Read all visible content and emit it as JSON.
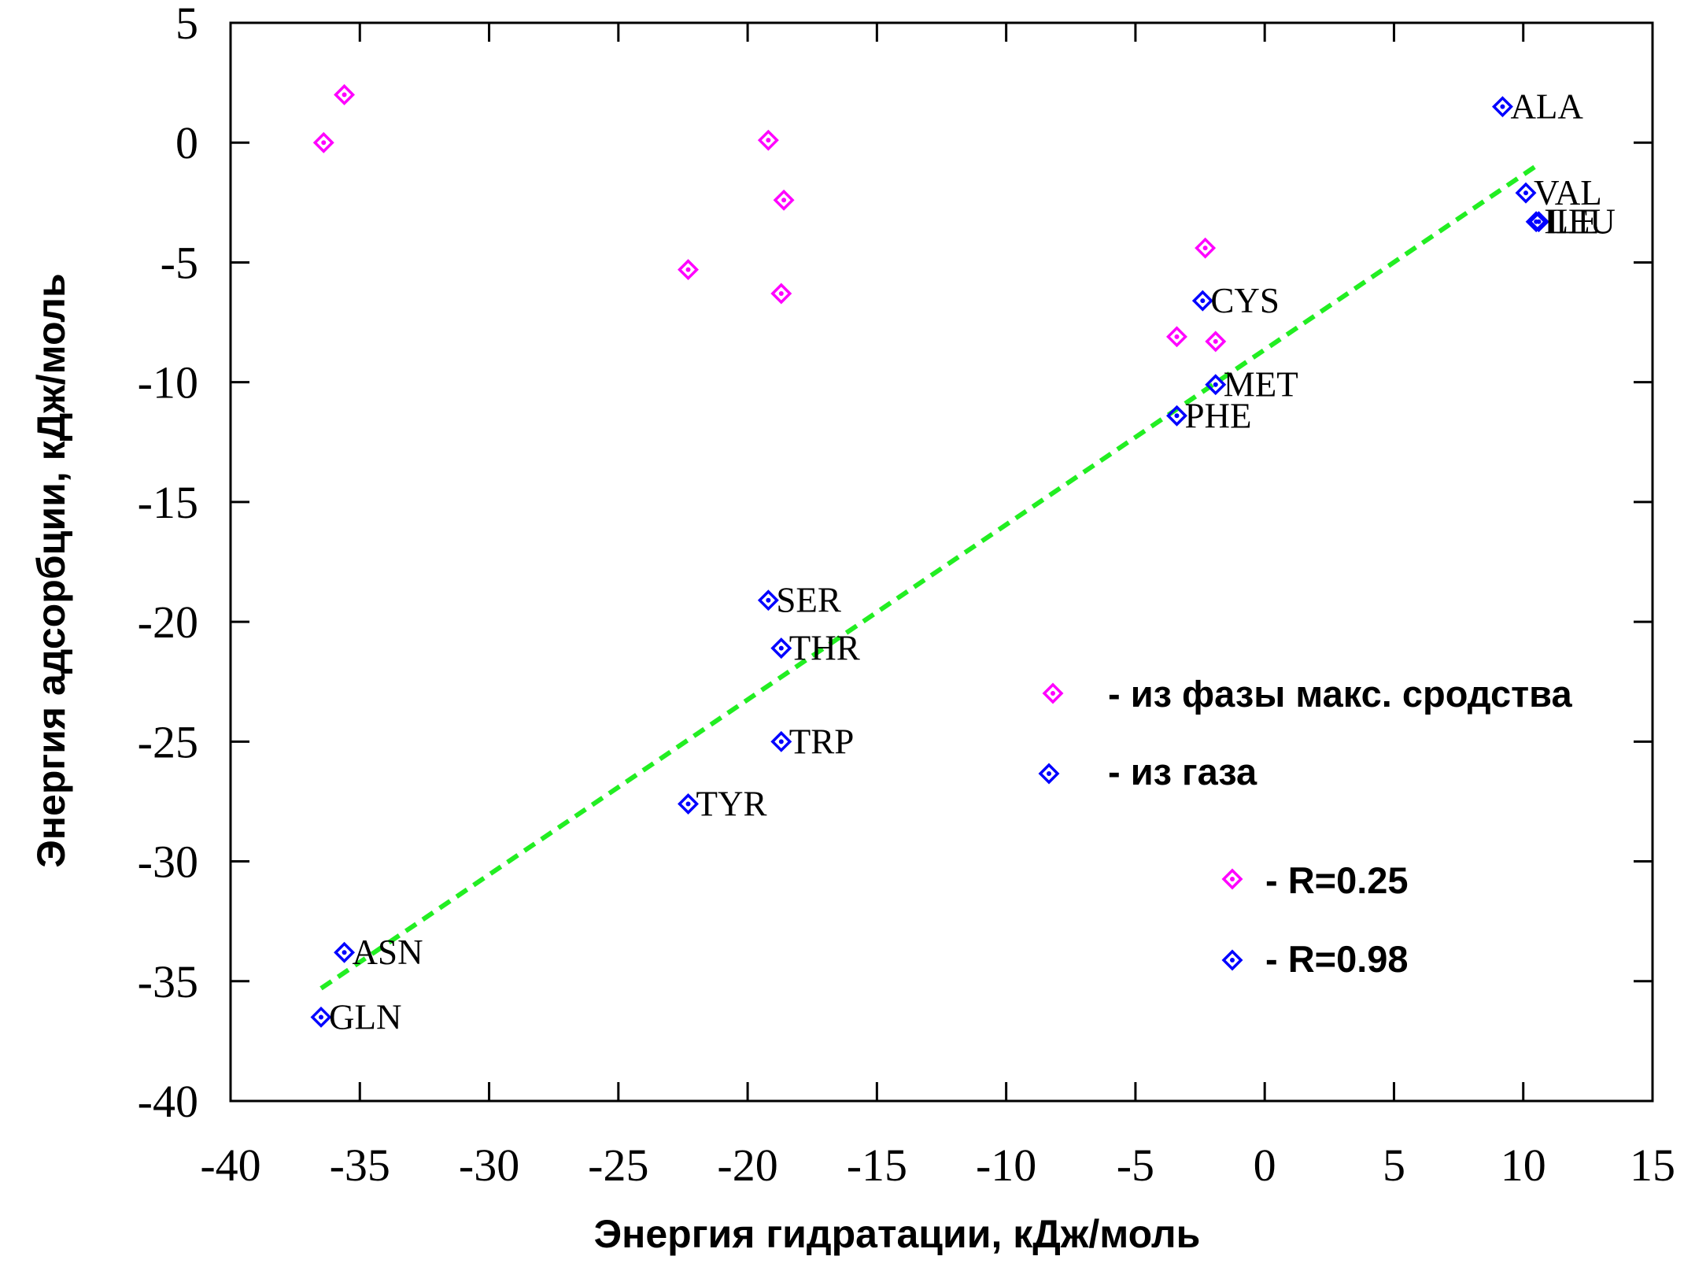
{
  "chart_data": {
    "type": "scatter",
    "xlabel": "Энергия гидратации, кДж/моль",
    "ylabel": "Энергия адсорбции, кДж/моль",
    "xlim": [
      -40,
      15
    ],
    "ylim": [
      -40,
      5
    ],
    "xticks": [
      -40,
      -35,
      -30,
      -25,
      -20,
      -15,
      -10,
      -5,
      0,
      5,
      10,
      15
    ],
    "yticks": [
      5,
      0,
      -5,
      -10,
      -15,
      -20,
      -25,
      -30,
      -35,
      -40
    ],
    "x_tick_labels": [
      "-40",
      "-35",
      "-30",
      "-25",
      "-20",
      "-15",
      "-10",
      "-5",
      "0",
      "5",
      "10",
      "15"
    ],
    "y_tick_labels": [
      "5",
      "0",
      "-5",
      "-10",
      "-15",
      "-20",
      "-25",
      "-30",
      "-35",
      "-40"
    ],
    "grid": false,
    "series": [
      {
        "name": "- из фазы макс. сродства",
        "color": "#ff00ff",
        "marker": "diamond",
        "points": [
          {
            "x": -35.6,
            "y": 2.0
          },
          {
            "x": -36.4,
            "y": 0.0
          },
          {
            "x": -19.2,
            "y": 0.1
          },
          {
            "x": -18.6,
            "y": -2.4
          },
          {
            "x": -22.3,
            "y": -5.3
          },
          {
            "x": -18.7,
            "y": -6.3
          },
          {
            "x": -2.3,
            "y": -4.4
          },
          {
            "x": -3.4,
            "y": -8.1
          },
          {
            "x": -1.9,
            "y": -8.3
          }
        ]
      },
      {
        "name": "- из газа",
        "color": "#0000ff",
        "marker": "diamond",
        "points": [
          {
            "x": 9.2,
            "y": 1.5,
            "label": "ALA"
          },
          {
            "x": 10.1,
            "y": -2.1,
            "label": "VAL"
          },
          {
            "x": 10.5,
            "y": -3.3,
            "label": "ILE"
          },
          {
            "x": 10.6,
            "y": -3.3,
            "label": "LEU"
          },
          {
            "x": -2.4,
            "y": -6.6,
            "label": "CYS"
          },
          {
            "x": -1.9,
            "y": -10.1,
            "label": "MET"
          },
          {
            "x": -3.4,
            "y": -11.4,
            "label": "PHE"
          },
          {
            "x": -19.2,
            "y": -19.1,
            "label": "SER"
          },
          {
            "x": -18.7,
            "y": -21.1,
            "label": "THR"
          },
          {
            "x": -18.7,
            "y": -25.0,
            "label": "TRP"
          },
          {
            "x": -22.3,
            "y": -27.6,
            "label": "TYR"
          },
          {
            "x": -35.6,
            "y": -33.8,
            "label": "ASN"
          },
          {
            "x": -36.5,
            "y": -36.5,
            "label": "GLN"
          }
        ]
      }
    ],
    "fit_line": {
      "color": "#22ee22",
      "style": "dashed",
      "x": [
        -36.5,
        10.6
      ],
      "y": [
        -35.3,
        -0.9
      ]
    },
    "legend": {
      "placement": "right-middle",
      "entries": [
        {
          "text": "- из фазы макс. сродства",
          "color": "#ff00ff"
        },
        {
          "text": "- из газа",
          "color": "#0000ff"
        }
      ]
    },
    "annotations": [
      {
        "text": "-  R=0.25",
        "color": "#ff00ff"
      },
      {
        "text": "-  R=0.98",
        "color": "#0000ff"
      }
    ]
  }
}
